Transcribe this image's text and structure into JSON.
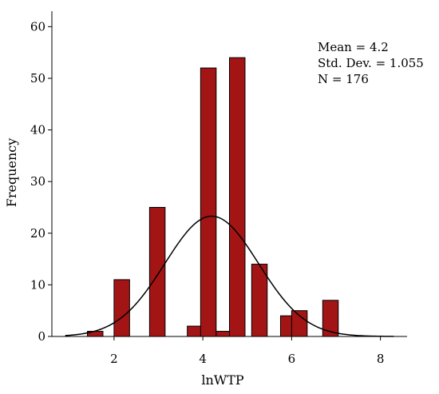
{
  "chart_data": {
    "type": "bar",
    "title": "",
    "xlabel": "lnWTP",
    "ylabel": "Frequency",
    "xlim": [
      0.6,
      8.6
    ],
    "ylim": [
      0,
      63
    ],
    "x_ticks": [
      2,
      4,
      6,
      8
    ],
    "y_ticks": [
      0,
      10,
      20,
      30,
      40,
      50,
      60
    ],
    "bin_width": 0.35,
    "bars": [
      {
        "x_start": 1.4,
        "count": 1
      },
      {
        "x_start": 2.0,
        "count": 11
      },
      {
        "x_start": 2.8,
        "count": 25
      },
      {
        "x_start": 3.65,
        "count": 2
      },
      {
        "x_start": 3.95,
        "count": 52
      },
      {
        "x_start": 4.3,
        "count": 1
      },
      {
        "x_start": 4.6,
        "count": 54
      },
      {
        "x_start": 5.1,
        "count": 14
      },
      {
        "x_start": 5.75,
        "count": 4
      },
      {
        "x_start": 6.0,
        "count": 5
      },
      {
        "x_start": 6.7,
        "count": 7
      }
    ],
    "normal_curve": {
      "mean": 4.2,
      "sd": 1.055,
      "n": 176
    },
    "grid": false,
    "colors": {
      "bar_fill": "#a31515",
      "bar_stroke": "#000000",
      "curve": "#000000",
      "axis": "#000000"
    }
  },
  "stats": {
    "mean": "Mean = 4.2",
    "std_dev": "Std. Dev. = 1.055",
    "n": "N = 176"
  }
}
